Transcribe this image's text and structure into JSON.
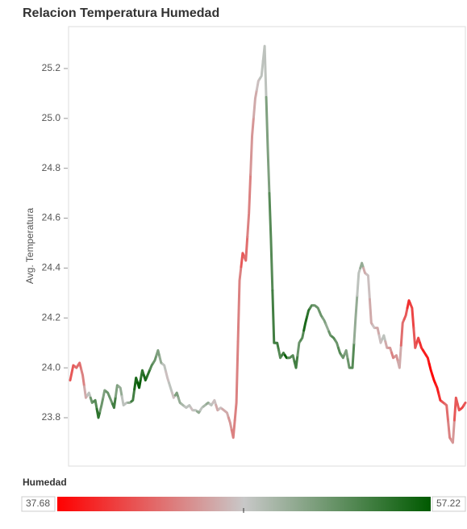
{
  "chart_data": {
    "type": "line",
    "title": "Relacion Temperatura Humedad",
    "y_label": "Avg. Temperatura",
    "ylim": [
      23.606,
      25.368
    ],
    "yticks": [
      23.8,
      {
        "value": 24,
        "label": "24.0"
      },
      24.2,
      24.4,
      24.6,
      24.8,
      {
        "value": 25,
        "label": "25.0"
      },
      25.2
    ],
    "grid": false,
    "values": [
      23.95,
      24.01,
      24.0,
      24.02,
      23.97,
      23.88,
      23.9,
      23.86,
      23.87,
      23.8,
      23.85,
      23.91,
      23.9,
      23.87,
      23.84,
      23.93,
      23.92,
      23.85,
      23.86,
      23.86,
      23.87,
      23.96,
      23.92,
      23.99,
      23.95,
      23.98,
      24.01,
      24.03,
      24.07,
      24.02,
      24.01,
      23.96,
      23.92,
      23.88,
      23.9,
      23.86,
      23.85,
      23.84,
      23.85,
      23.83,
      23.83,
      23.82,
      23.84,
      23.85,
      23.86,
      23.85,
      23.87,
      23.83,
      23.84,
      23.83,
      23.82,
      23.78,
      23.72,
      23.86,
      24.35,
      24.46,
      24.43,
      24.62,
      24.93,
      25.08,
      25.15,
      25.17,
      25.29,
      24.88,
      24.52,
      24.1,
      24.1,
      24.04,
      24.06,
      24.04,
      24.04,
      24.05,
      24.0,
      24.1,
      24.12,
      24.18,
      24.23,
      24.25,
      24.25,
      24.24,
      24.21,
      24.19,
      24.16,
      24.13,
      24.12,
      24.1,
      24.06,
      24.04,
      24.07,
      24.0,
      24.0,
      24.2,
      24.38,
      24.42,
      24.38,
      24.37,
      24.18,
      24.16,
      24.16,
      24.1,
      24.13,
      24.08,
      24.08,
      24.04,
      24.05,
      24.0,
      24.18,
      24.21,
      24.27,
      24.24,
      24.08,
      24.12,
      24.08,
      24.06,
      24.04,
      23.99,
      23.95,
      23.92,
      23.87,
      23.86,
      23.85,
      23.72,
      23.7,
      23.88,
      23.83,
      23.84,
      23.86
    ],
    "humidity": [
      42,
      42,
      43,
      43,
      44,
      46,
      48,
      52,
      53,
      55,
      52,
      51,
      52,
      52,
      54,
      51,
      50,
      48,
      48,
      50,
      54,
      56,
      57,
      55,
      56,
      55,
      53,
      52,
      51,
      50,
      48,
      47,
      48,
      47,
      51,
      50,
      49,
      48,
      48,
      47,
      48,
      50,
      48,
      49,
      50,
      48,
      47,
      46,
      47,
      46,
      46,
      45,
      44,
      44,
      44,
      42,
      43,
      44,
      45,
      46,
      47,
      48,
      48,
      51,
      53,
      54,
      54,
      53,
      54,
      57,
      53,
      53,
      54,
      52,
      53,
      56,
      55,
      53,
      52,
      52,
      52,
      51,
      50,
      52,
      53,
      52,
      53,
      52,
      51,
      52,
      53,
      50,
      48,
      50,
      46,
      47,
      46,
      47,
      46,
      47,
      48,
      46,
      45,
      44,
      45,
      46,
      43,
      42,
      40,
      41,
      42,
      41,
      40,
      39,
      39,
      38,
      38,
      39,
      40,
      42,
      43,
      44,
      45,
      42,
      42,
      41,
      42
    ],
    "legend": {
      "title": "Humedad",
      "min": 37.68,
      "max": 57.22
    },
    "colors": [
      "#ff0000",
      "#c8c8c8",
      "#005a00"
    ]
  }
}
